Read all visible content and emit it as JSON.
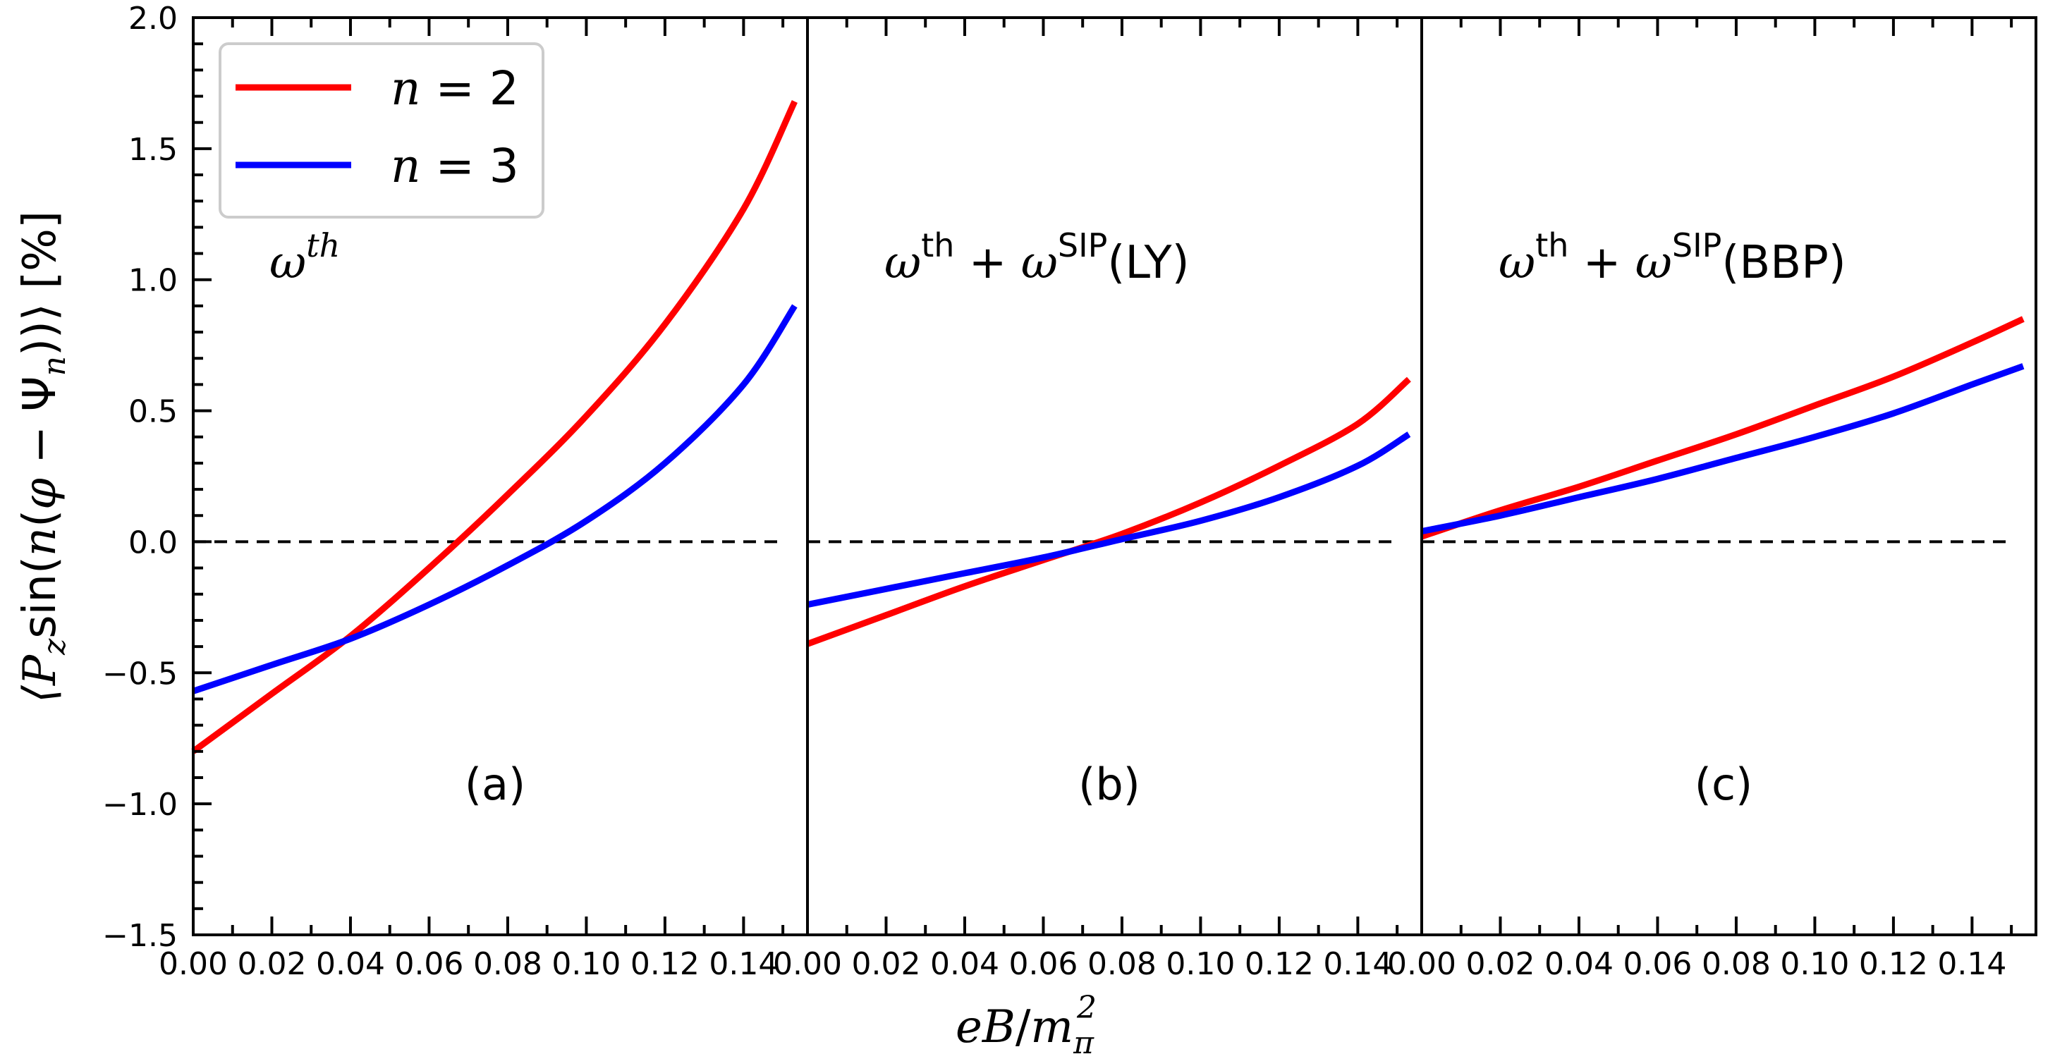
{
  "chart_data": {
    "type": "line",
    "layout": "three panels sharing a y-axis, side by side",
    "ylabel": "⟨P_z sin(n(φ − Ψ_n))⟩ [%]",
    "xlabel": "eB/m_π^2",
    "ylim": [
      -1.5,
      2.0
    ],
    "xlim": [
      0.0,
      0.155
    ],
    "yticks": [
      "2.0",
      "1.5",
      "1.0",
      "0.5",
      "0.0",
      "−0.5",
      "−1.0",
      "−1.5"
    ],
    "xticks": [
      "0.00",
      "0.02",
      "0.04",
      "0.06",
      "0.08",
      "0.10",
      "0.12",
      "0.14"
    ],
    "reference_line": {
      "y": 0.0,
      "style": "dashed",
      "color": "#000000"
    },
    "legend": {
      "placement": "top-left of first panel",
      "entries": [
        {
          "label": "n = 2",
          "color": "#ff0000"
        },
        {
          "label": "n = 3",
          "color": "#0000ff"
        }
      ]
    },
    "panels": [
      {
        "label": "(a)",
        "annotation": "ω^th",
        "series": [
          {
            "name": "n = 2",
            "color": "#ff0000",
            "x": [
              0.0,
              0.02,
              0.04,
              0.06,
              0.08,
              0.1,
              0.12,
              0.14,
              0.153
            ],
            "y": [
              -0.8,
              -0.58,
              -0.36,
              -0.1,
              0.18,
              0.48,
              0.83,
              1.27,
              1.68
            ]
          },
          {
            "name": "n = 3",
            "color": "#0000ff",
            "x": [
              0.0,
              0.02,
              0.04,
              0.06,
              0.08,
              0.1,
              0.12,
              0.14,
              0.153
            ],
            "y": [
              -0.57,
              -0.47,
              -0.37,
              -0.24,
              -0.09,
              0.08,
              0.3,
              0.6,
              0.9
            ]
          }
        ]
      },
      {
        "label": "(b)",
        "annotation": "ω^th + ω^SIP(LY)",
        "series": [
          {
            "name": "n = 2",
            "color": "#ff0000",
            "x": [
              0.0,
              0.02,
              0.04,
              0.06,
              0.08,
              0.1,
              0.12,
              0.14,
              0.153
            ],
            "y": [
              -0.39,
              -0.28,
              -0.17,
              -0.07,
              0.03,
              0.15,
              0.29,
              0.45,
              0.62
            ]
          },
          {
            "name": "n = 3",
            "color": "#0000ff",
            "x": [
              0.0,
              0.02,
              0.04,
              0.06,
              0.08,
              0.1,
              0.12,
              0.14,
              0.153
            ],
            "y": [
              -0.24,
              -0.18,
              -0.12,
              -0.06,
              0.01,
              0.08,
              0.17,
              0.29,
              0.41
            ]
          }
        ]
      },
      {
        "label": "(c)",
        "annotation": "ω^th + ω^SIP(BBP)",
        "series": [
          {
            "name": "n = 2",
            "color": "#ff0000",
            "x": [
              0.0,
              0.02,
              0.04,
              0.06,
              0.08,
              0.1,
              0.12,
              0.14,
              0.153
            ],
            "y": [
              0.02,
              0.12,
              0.21,
              0.31,
              0.41,
              0.52,
              0.63,
              0.76,
              0.85
            ]
          },
          {
            "name": "n = 3",
            "color": "#0000ff",
            "x": [
              0.0,
              0.02,
              0.04,
              0.06,
              0.08,
              0.1,
              0.12,
              0.14,
              0.153
            ],
            "y": [
              0.04,
              0.1,
              0.17,
              0.24,
              0.32,
              0.4,
              0.49,
              0.6,
              0.67
            ]
          }
        ]
      }
    ]
  }
}
